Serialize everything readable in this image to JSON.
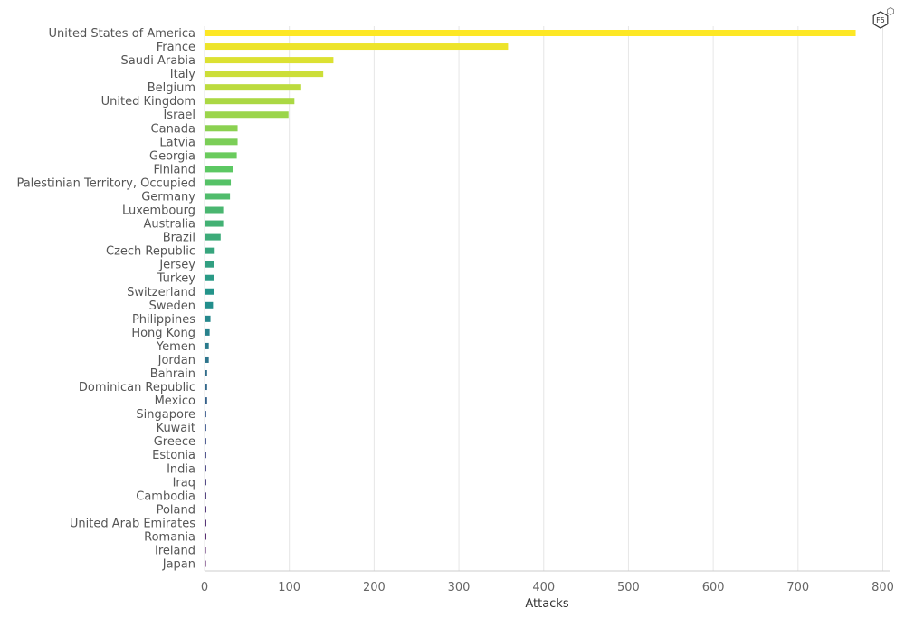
{
  "chart_data": {
    "type": "bar",
    "orientation": "horizontal",
    "categories": [
      "United States of America",
      "France",
      "Saudi Arabia",
      "Italy",
      "Belgium",
      "United Kingdom",
      "Israel",
      "Canada",
      "Latvia",
      "Georgia",
      "Finland",
      "Palestinian Territory, Occupied",
      "Germany",
      "Luxembourg",
      "Australia",
      "Brazil",
      "Czech Republic",
      "Jersey",
      "Turkey",
      "Switzerland",
      "Sweden",
      "Philippines",
      "Hong Kong",
      "Yemen",
      "Jordan",
      "Bahrain",
      "Dominican Republic",
      "Mexico",
      "Singapore",
      "Kuwait",
      "Greece",
      "Estonia",
      "India",
      "Iraq",
      "Cambodia",
      "Poland",
      "United Arab Emirates",
      "Romania",
      "Ireland",
      "Japan"
    ],
    "values": [
      768,
      358,
      152,
      140,
      114,
      106,
      99,
      39,
      39,
      38,
      34,
      31,
      30,
      22,
      22,
      19,
      12,
      11,
      11,
      11,
      10,
      7,
      6,
      5,
      5,
      3,
      3,
      3,
      2,
      2,
      2,
      2,
      2,
      2,
      2,
      2,
      2,
      2,
      1,
      1
    ],
    "xlabel": "Attacks",
    "ylabel": "",
    "xlim": [
      0,
      808
    ],
    "xticks": [
      0,
      100,
      200,
      300,
      400,
      500,
      600,
      700,
      800
    ],
    "grid": "vertical",
    "colormap": "viridis (largest = yellow, smallest = dark purple)",
    "title": ""
  },
  "logo": {
    "text": "F5",
    "icon": "f5-hexagon-logo-icon"
  }
}
